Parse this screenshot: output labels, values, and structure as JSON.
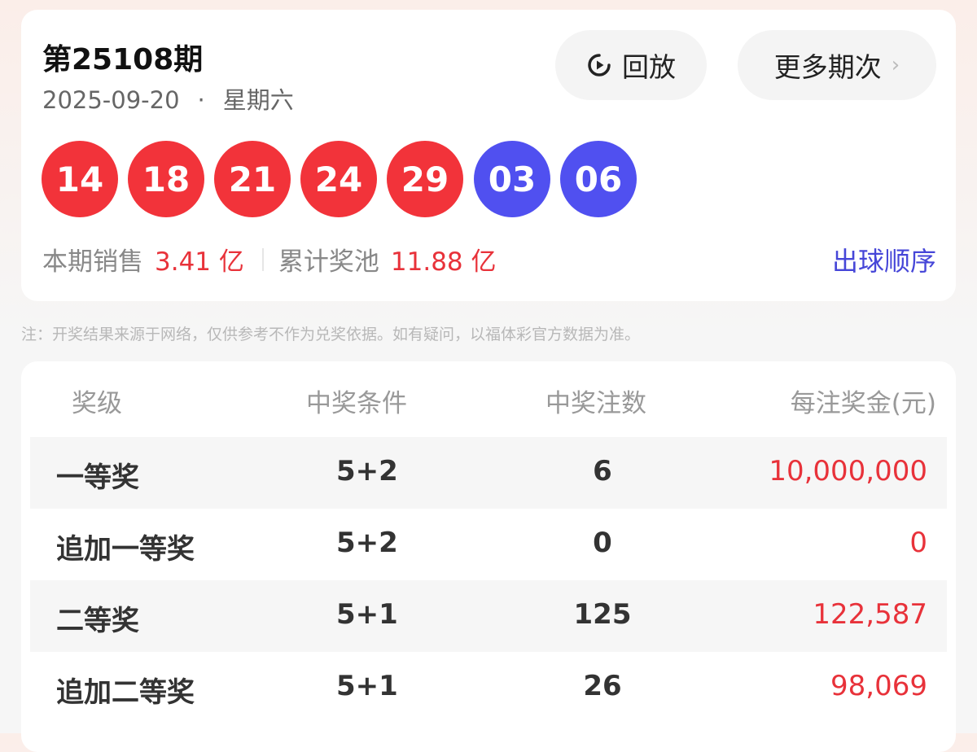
{
  "draw": {
    "title": "第25108期",
    "date": "2025-09-20",
    "dot": "·",
    "weekday": "星期六",
    "replay_label": "回放",
    "more_label": "更多期次",
    "red_balls": [
      "14",
      "18",
      "21",
      "24",
      "29"
    ],
    "blue_balls": [
      "03",
      "06"
    ],
    "sales_label": "本期销售",
    "sales_value": "3.41 亿",
    "pool_label": "累计奖池",
    "pool_value": "11.88 亿",
    "order_link": "出球顺序",
    "colors": {
      "red": "#f2333a",
      "blue": "#5050f0",
      "link": "#4646d8"
    }
  },
  "note": "注：开奖结果来源于网络，仅供参考不作为兑奖依据。如有疑问，以福体彩官方数据为准。",
  "table": {
    "headers": [
      "奖级",
      "中奖条件",
      "中奖注数",
      "每注奖金(元)"
    ],
    "rows": [
      [
        "一等奖",
        "5+2",
        "6",
        "10,000,000"
      ],
      [
        "追加一等奖",
        "5+2",
        "0",
        "0"
      ],
      [
        "二等奖",
        "5+1",
        "125",
        "122,587"
      ],
      [
        "追加二等奖",
        "5+1",
        "26",
        "98,069"
      ]
    ]
  }
}
